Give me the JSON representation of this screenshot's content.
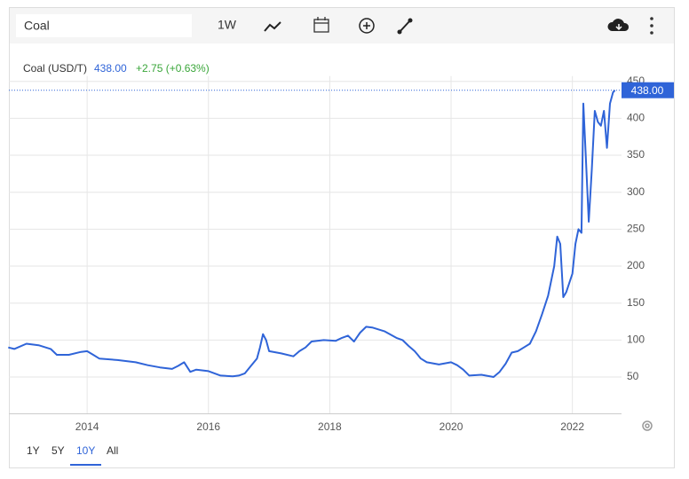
{
  "toolbar": {
    "search": "Coal",
    "interval": "1W"
  },
  "header": {
    "price": "438.00",
    "change": "+2.75 (+0.63%)"
  },
  "ranges": [
    "1Y",
    "5Y",
    "10Y",
    "All"
  ],
  "chart_data": {
    "type": "line",
    "x": [
      2012.7,
      2012.8,
      2013.0,
      2013.2,
      2013.4,
      2013.5,
      2013.7,
      2013.9,
      2014.0,
      2014.1,
      2014.2,
      2014.5,
      2014.8,
      2015.0,
      2015.2,
      2015.4,
      2015.5,
      2015.6,
      2015.7,
      2015.8,
      2016.0,
      2016.2,
      2016.4,
      2016.5,
      2016.6,
      2016.7,
      2016.8,
      2016.85,
      2016.9,
      2016.95,
      2017.0,
      2017.2,
      2017.4,
      2017.5,
      2017.6,
      2017.7,
      2017.9,
      2018.1,
      2018.2,
      2018.3,
      2018.4,
      2018.5,
      2018.6,
      2018.7,
      2018.9,
      2019.1,
      2019.2,
      2019.3,
      2019.4,
      2019.45,
      2019.5,
      2019.6,
      2019.8,
      2020.0,
      2020.1,
      2020.2,
      2020.3,
      2020.5,
      2020.7,
      2020.8,
      2020.9,
      2021.0,
      2021.1,
      2021.2,
      2021.3,
      2021.4,
      2021.5,
      2021.6,
      2021.7,
      2021.75,
      2021.8,
      2021.85,
      2021.9,
      2022.0,
      2022.05,
      2022.1,
      2022.15,
      2022.18,
      2022.22,
      2022.27,
      2022.32,
      2022.37,
      2022.42,
      2022.47,
      2022.52,
      2022.57,
      2022.62,
      2022.67,
      2022.7
    ],
    "series": [
      {
        "name": "Coal (USD/T)",
        "color": "#2f64d8",
        "values": [
          90,
          88,
          95,
          93,
          88,
          80,
          80,
          84,
          85,
          80,
          75,
          73,
          70,
          66,
          63,
          61,
          65,
          70,
          57,
          60,
          58,
          52,
          51,
          52,
          55,
          65,
          75,
          90,
          108,
          100,
          85,
          82,
          78,
          85,
          90,
          98,
          100,
          99,
          103,
          106,
          98,
          110,
          118,
          117,
          112,
          103,
          100,
          92,
          85,
          80,
          75,
          70,
          67,
          70,
          66,
          60,
          52,
          53,
          50,
          57,
          68,
          83,
          85,
          90,
          95,
          112,
          135,
          160,
          200,
          240,
          230,
          158,
          165,
          190,
          230,
          250,
          245,
          420,
          350,
          260,
          330,
          410,
          395,
          390,
          410,
          360,
          420,
          435,
          438
        ]
      }
    ],
    "xlim": [
      2012.71,
      2022.81
    ],
    "xticks": [
      2014,
      2016,
      2018,
      2020,
      2022
    ],
    "ylim": [
      0,
      450
    ],
    "yticks": [
      50,
      100,
      150,
      200,
      250,
      300,
      350,
      400,
      450
    ],
    "grid": true
  }
}
